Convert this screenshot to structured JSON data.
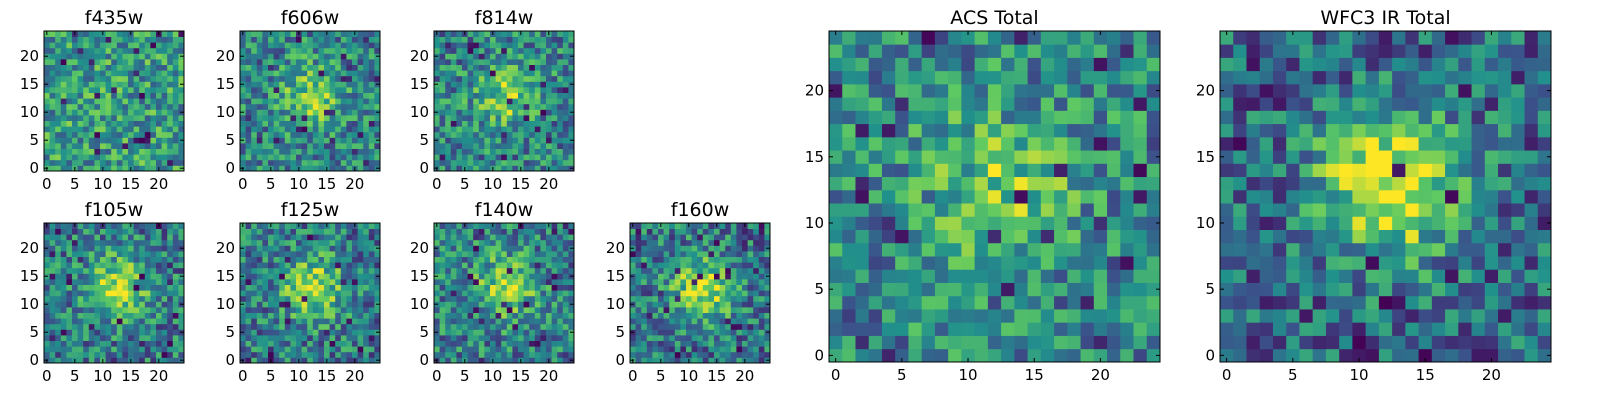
{
  "figure": {
    "background": "#ffffff",
    "colormap": [
      "#440154",
      "#3b528b",
      "#21918c",
      "#5ec962",
      "#fde725"
    ]
  },
  "chart_data": [
    {
      "type": "heatmap",
      "title": "f435w",
      "xlim": [
        0,
        24
      ],
      "ylim": [
        0,
        24
      ],
      "xticks": [
        0,
        5,
        10,
        15,
        20
      ],
      "yticks": [
        0,
        5,
        10,
        15,
        20
      ],
      "grid": false,
      "peak": 0.0
    },
    {
      "type": "heatmap",
      "title": "f606w",
      "xlim": [
        0,
        24
      ],
      "ylim": [
        0,
        24
      ],
      "xticks": [
        0,
        5,
        10,
        15,
        20
      ],
      "yticks": [
        0,
        5,
        10,
        15,
        20
      ],
      "grid": false,
      "peak": 0.35
    },
    {
      "type": "heatmap",
      "title": "f814w",
      "xlim": [
        0,
        24
      ],
      "ylim": [
        0,
        24
      ],
      "xticks": [
        0,
        5,
        10,
        15,
        20
      ],
      "yticks": [
        0,
        5,
        10,
        15,
        20
      ],
      "grid": false,
      "peak": 0.35
    },
    {
      "type": "heatmap",
      "title": "f105w",
      "xlim": [
        0,
        24
      ],
      "ylim": [
        0,
        24
      ],
      "xticks": [
        0,
        5,
        10,
        15,
        20
      ],
      "yticks": [
        0,
        5,
        10,
        15,
        20
      ],
      "grid": false,
      "peak": 0.45
    },
    {
      "type": "heatmap",
      "title": "f125w",
      "xlim": [
        0,
        24
      ],
      "ylim": [
        0,
        24
      ],
      "xticks": [
        0,
        5,
        10,
        15,
        20
      ],
      "yticks": [
        0,
        5,
        10,
        15,
        20
      ],
      "grid": false,
      "peak": 0.45
    },
    {
      "type": "heatmap",
      "title": "f140w",
      "xlim": [
        0,
        24
      ],
      "ylim": [
        0,
        24
      ],
      "xticks": [
        0,
        5,
        10,
        15,
        20
      ],
      "yticks": [
        0,
        5,
        10,
        15,
        20
      ],
      "grid": false,
      "peak": 0.4
    },
    {
      "type": "heatmap",
      "title": "f160w",
      "xlim": [
        0,
        24
      ],
      "ylim": [
        0,
        24
      ],
      "xticks": [
        0,
        5,
        10,
        15,
        20
      ],
      "yticks": [
        0,
        5,
        10,
        15,
        20
      ],
      "grid": false,
      "peak": 0.5
    },
    {
      "type": "heatmap",
      "title": "ACS Total",
      "xlim": [
        0,
        24
      ],
      "ylim": [
        0,
        24
      ],
      "xticks": [
        0,
        5,
        10,
        15,
        20
      ],
      "yticks": [
        0,
        5,
        10,
        15,
        20
      ],
      "grid": false,
      "peak": 0.3
    },
    {
      "type": "heatmap",
      "title": "WFC3 IR Total",
      "xlim": [
        0,
        24
      ],
      "ylim": [
        0,
        24
      ],
      "xticks": [
        0,
        5,
        10,
        15,
        20
      ],
      "yticks": [
        0,
        5,
        10,
        15,
        20
      ],
      "grid": false,
      "peak": 0.7
    }
  ]
}
